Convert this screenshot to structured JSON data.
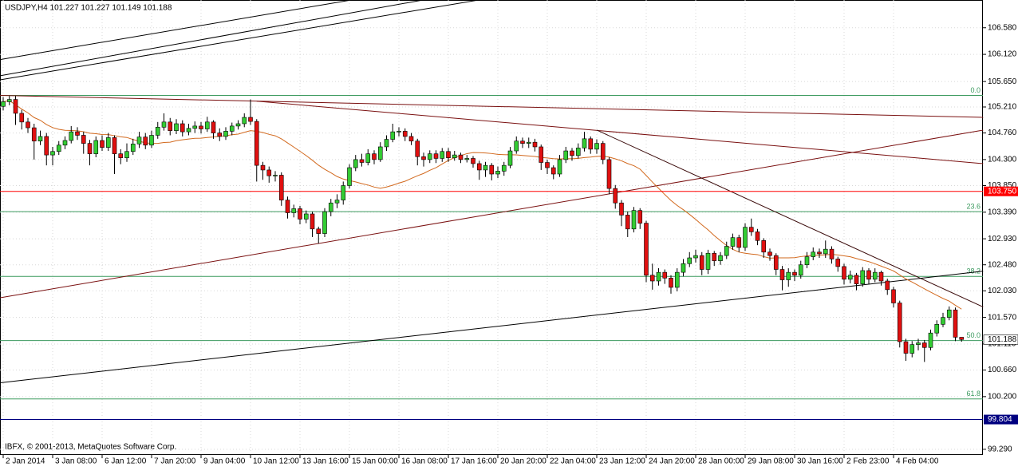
{
  "chart_data": {
    "type": "candlestick",
    "title": "USDJPY,H4  101.227 101.227 101.149 101.188",
    "footer": "IBFX, © 2001-2013, MetaQuotes Software Corp.",
    "categories": [
      "2 Jan 2014",
      null,
      null,
      null,
      null,
      null,
      null,
      null,
      "3 Jan 08:00",
      null,
      null,
      null,
      null,
      null,
      null,
      null,
      "6 Jan 12:00",
      null,
      null,
      null,
      null,
      null,
      null,
      null,
      "7 Jan 20:00",
      null,
      null,
      null,
      null,
      null,
      null,
      null,
      "9 Jan 04:00",
      null,
      null,
      null,
      null,
      null,
      null,
      null,
      "10 Jan 12:00",
      null,
      null,
      null,
      null,
      null,
      null,
      null,
      "13 Jan 16:00",
      null,
      null,
      null,
      null,
      null,
      null,
      null,
      "15 Jan 00:00",
      null,
      null,
      null,
      null,
      null,
      null,
      null,
      "16 Jan 08:00",
      null,
      null,
      null,
      null,
      null,
      null,
      null,
      "17 Jan 16:00",
      null,
      null,
      null,
      null,
      null,
      null,
      null,
      "20 Jan 20:00",
      null,
      null,
      null,
      null,
      null,
      null,
      null,
      "22 Jan 04:00",
      null,
      null,
      null,
      null,
      null,
      null,
      null,
      "23 Jan 12:00",
      null,
      null,
      null,
      null,
      null,
      null,
      null,
      "24 Jan 20:00",
      null,
      null,
      null,
      null,
      null,
      null,
      null,
      "28 Jan 00:00",
      null,
      null,
      null,
      null,
      null,
      null,
      null,
      "29 Jan 08:00",
      null,
      null,
      null,
      null,
      null,
      null,
      null,
      "30 Jan 16:00",
      null,
      null,
      null,
      null,
      null,
      null,
      null,
      "2 Feb 23:00",
      null,
      null,
      null,
      null,
      null,
      null,
      null,
      "4 Feb 04:00",
      null,
      null,
      null,
      null,
      null,
      null,
      null,
      null,
      null,
      null,
      null
    ],
    "series": [
      {
        "up_color": "#33cc33",
        "down_color": "#e01010",
        "wick_color": "#000000",
        "open": [
          105.22,
          105.3,
          105.34,
          105.1,
          104.95,
          104.85,
          104.62,
          104.7,
          104.38,
          104.44,
          104.55,
          104.63,
          104.78,
          104.72,
          104.58,
          104.4,
          104.63,
          104.51,
          104.68,
          104.4,
          104.33,
          104.44,
          104.57,
          104.69,
          104.55,
          104.72,
          104.86,
          104.95,
          104.8,
          104.92,
          104.78,
          104.84,
          104.88,
          104.83,
          104.95,
          104.76,
          104.7,
          104.79,
          104.88,
          104.92,
          105.03,
          104.96,
          104.2,
          104.12,
          104.02,
          104.03,
          103.6,
          103.38,
          103.45,
          103.27,
          103.36,
          103.1,
          103.02,
          103.4,
          103.55,
          103.6,
          103.85,
          104.16,
          104.3,
          104.25,
          104.4,
          104.3,
          104.52,
          104.65,
          104.78,
          104.79,
          104.7,
          104.62,
          104.35,
          104.3,
          104.4,
          104.32,
          104.44,
          104.33,
          104.38,
          104.3,
          104.32,
          104.23,
          104.12,
          104.2,
          104.05,
          104.1,
          104.2,
          104.45,
          104.62,
          104.58,
          104.6,
          104.52,
          104.25,
          104.16,
          104.05,
          104.3,
          104.45,
          104.37,
          104.5,
          104.66,
          104.48,
          104.58,
          104.3,
          103.8,
          103.55,
          103.34,
          103.1,
          103.42,
          103.2,
          102.3,
          102.2,
          102.35,
          102.25,
          102.09,
          102.35,
          102.5,
          102.6,
          102.64,
          102.4,
          102.68,
          102.55,
          102.64,
          102.8,
          102.95,
          102.78,
          103.13,
          103.05,
          102.9,
          102.7,
          102.64,
          102.4,
          102.22,
          102.35,
          102.3,
          102.48,
          102.62,
          102.7,
          102.67,
          102.75,
          102.58,
          102.45,
          102.23,
          102.3,
          102.15,
          102.38,
          102.23,
          102.35,
          102.2,
          102.05,
          101.82,
          101.15,
          100.95,
          101.1,
          101.13,
          101.05,
          101.3,
          101.45,
          101.57,
          101.7,
          101.227
        ],
        "high": [
          105.38,
          105.4,
          105.4,
          105.16,
          105.02,
          104.92,
          104.8,
          104.76,
          104.52,
          104.62,
          104.7,
          104.88,
          104.86,
          104.78,
          104.64,
          104.7,
          104.72,
          104.76,
          104.72,
          104.48,
          104.58,
          104.66,
          104.78,
          104.76,
          104.8,
          104.95,
          105.1,
          105.02,
          105.0,
          104.98,
          104.92,
          104.96,
          104.95,
          105.04,
          104.98,
          104.84,
          104.86,
          104.94,
          104.98,
          105.1,
          105.34,
          105.0,
          104.26,
          104.18,
          104.1,
          104.08,
          103.66,
          103.52,
          103.5,
          103.42,
          103.4,
          103.14,
          103.46,
          103.62,
          103.7,
          103.92,
          104.22,
          104.38,
          104.4,
          104.48,
          104.46,
          104.6,
          104.72,
          104.92,
          104.86,
          104.84,
          104.76,
          104.66,
          104.42,
          104.46,
          104.46,
          104.5,
          104.5,
          104.45,
          104.42,
          104.38,
          104.36,
          104.28,
          104.26,
          104.24,
          104.18,
          104.26,
          104.52,
          104.7,
          104.68,
          104.68,
          104.66,
          104.56,
          104.3,
          104.2,
          104.38,
          104.52,
          104.5,
          104.58,
          104.78,
          104.7,
          104.65,
          104.62,
          104.34,
          103.86,
          103.6,
          103.4,
          103.48,
          103.46,
          103.24,
          102.5,
          102.42,
          102.4,
          102.3,
          102.42,
          102.58,
          102.7,
          102.74,
          102.7,
          102.74,
          102.72,
          102.7,
          102.88,
          103.02,
          103.0,
          103.2,
          103.28,
          103.1,
          102.94,
          102.76,
          102.68,
          102.46,
          102.42,
          102.4,
          102.55,
          102.7,
          102.78,
          102.76,
          102.9,
          102.8,
          102.62,
          102.5,
          102.38,
          102.34,
          102.44,
          102.42,
          102.42,
          102.38,
          102.24,
          102.1,
          101.86,
          101.2,
          101.16,
          101.2,
          101.18,
          101.36,
          101.52,
          101.65,
          101.76,
          101.74,
          101.227
        ],
        "low": [
          105.15,
          105.24,
          104.9,
          104.82,
          104.76,
          104.3,
          104.55,
          104.2,
          104.2,
          104.38,
          104.48,
          104.58,
          104.64,
          104.4,
          104.2,
          104.34,
          104.45,
          104.45,
          104.05,
          104.22,
          104.26,
          104.38,
          104.5,
          104.48,
          104.5,
          104.66,
          104.8,
          104.72,
          104.74,
          104.7,
          104.72,
          104.76,
          104.75,
          104.78,
          104.66,
          104.62,
          104.64,
          104.72,
          104.82,
          104.86,
          104.9,
          103.92,
          103.95,
          103.9,
          103.92,
          103.5,
          103.28,
          103.3,
          103.18,
          103.2,
          102.96,
          102.85,
          102.96,
          103.32,
          103.46,
          103.52,
          103.8,
          104.1,
          104.18,
          104.2,
          104.22,
          104.26,
          104.45,
          104.6,
          104.7,
          104.62,
          104.55,
          104.2,
          104.18,
          104.24,
          104.24,
          104.26,
          104.26,
          104.28,
          104.24,
          104.25,
          104.16,
          103.95,
          104.0,
          103.94,
          103.98,
          104.02,
          104.15,
          104.4,
          104.5,
          104.5,
          104.44,
          104.12,
          104.05,
          103.96,
          104.0,
          104.24,
          104.28,
          104.32,
          104.44,
          104.4,
          104.4,
          104.22,
          103.7,
          103.45,
          103.15,
          102.96,
          103.04,
          103.1,
          102.18,
          102.05,
          102.12,
          102.15,
          101.98,
          102.02,
          102.28,
          102.44,
          102.52,
          102.3,
          102.32,
          102.46,
          102.48,
          102.58,
          102.74,
          102.7,
          102.72,
          102.98,
          102.82,
          102.6,
          102.55,
          102.3,
          102.04,
          102.1,
          102.2,
          102.24,
          102.42,
          102.56,
          102.6,
          102.6,
          102.5,
          102.36,
          102.14,
          102.16,
          102.04,
          102.1,
          102.15,
          102.18,
          102.12,
          101.96,
          101.74,
          101.05,
          100.82,
          100.88,
          101.0,
          100.8,
          101.0,
          101.24,
          101.4,
          101.52,
          101.16,
          101.149
        ],
        "close": [
          105.3,
          105.34,
          105.1,
          104.95,
          104.85,
          104.62,
          104.7,
          104.38,
          104.44,
          104.55,
          104.63,
          104.78,
          104.72,
          104.58,
          104.4,
          104.63,
          104.51,
          104.68,
          104.4,
          104.33,
          104.44,
          104.57,
          104.69,
          104.55,
          104.72,
          104.86,
          104.95,
          104.8,
          104.92,
          104.78,
          104.84,
          104.88,
          104.83,
          104.95,
          104.76,
          104.7,
          104.79,
          104.88,
          104.92,
          105.03,
          104.96,
          104.2,
          104.12,
          104.02,
          104.03,
          103.6,
          103.38,
          103.45,
          103.27,
          103.36,
          103.1,
          103.02,
          103.4,
          103.55,
          103.6,
          103.85,
          104.16,
          104.3,
          104.25,
          104.4,
          104.3,
          104.52,
          104.65,
          104.78,
          104.79,
          104.7,
          104.62,
          104.35,
          104.3,
          104.4,
          104.32,
          104.44,
          104.33,
          104.38,
          104.3,
          104.32,
          104.23,
          104.12,
          104.2,
          104.05,
          104.1,
          104.2,
          104.45,
          104.62,
          104.58,
          104.6,
          104.52,
          104.25,
          104.16,
          104.05,
          104.3,
          104.45,
          104.37,
          104.5,
          104.66,
          104.48,
          104.58,
          104.3,
          103.8,
          103.55,
          103.34,
          103.1,
          103.42,
          103.2,
          102.3,
          102.2,
          102.35,
          102.25,
          102.09,
          102.35,
          102.5,
          102.6,
          102.64,
          102.4,
          102.68,
          102.55,
          102.64,
          102.8,
          102.95,
          102.78,
          103.13,
          103.05,
          102.9,
          102.7,
          102.64,
          102.4,
          102.22,
          102.35,
          102.3,
          102.48,
          102.62,
          102.7,
          102.67,
          102.75,
          102.58,
          102.45,
          102.23,
          102.3,
          102.15,
          102.38,
          102.23,
          102.35,
          102.2,
          102.05,
          101.82,
          101.15,
          100.95,
          101.1,
          101.13,
          101.05,
          101.3,
          101.45,
          101.57,
          101.7,
          101.227,
          101.188
        ]
      }
    ],
    "moving_average": {
      "period": 21,
      "color": "#d2691e"
    },
    "ylim": [
      99.19,
      107.06
    ],
    "yticks": [
      {
        "value": 106.58,
        "label": "106.580"
      },
      {
        "value": 106.12,
        "label": "106.120"
      },
      {
        "value": 105.65,
        "label": "105.650"
      },
      {
        "value": 105.21,
        "label": "105.210"
      },
      {
        "value": 104.76,
        "label": "104.760"
      },
      {
        "value": 104.3,
        "label": "104.300"
      },
      {
        "value": 103.85,
        "label": "103.850"
      },
      {
        "value": 103.39,
        "label": "103.390"
      },
      {
        "value": 102.93,
        "label": "102.930"
      },
      {
        "value": 102.48,
        "label": "102.480"
      },
      {
        "value": 102.03,
        "label": "102.030"
      },
      {
        "value": 101.57,
        "label": "101.570"
      },
      {
        "value": 101.11,
        "label": "101.110"
      },
      {
        "value": 100.66,
        "label": "100.660"
      },
      {
        "value": 100.2,
        "label": "100.200"
      },
      {
        "value": 99.29,
        "label": "99.290"
      }
    ],
    "grid": true,
    "levels": [
      {
        "value": 103.75,
        "label": "103.750",
        "color": "#ff0000",
        "text_color": "#ffffff"
      },
      {
        "value": 99.804,
        "label": "99.804",
        "color": "#000080",
        "text_color": "#ffffff"
      }
    ],
    "current_price": {
      "value": 101.188,
      "label": "101.188"
    },
    "fibonacci": {
      "color": "#3c9a5f",
      "levels": [
        {
          "value": 105.41,
          "label": "0.0"
        },
        {
          "value": 103.4,
          "label": "23.6"
        },
        {
          "value": 102.28,
          "label": "38.2"
        },
        {
          "value": 101.17,
          "label": "50.0"
        },
        {
          "value": 100.16,
          "label": "61.8"
        }
      ]
    },
    "trendlines": [
      {
        "color": "#000000",
        "start": [
          -0.5,
          106.03
        ],
        "end": [
          56.3,
          107.06
        ]
      },
      {
        "color": "#000000",
        "start": [
          -0.5,
          105.75
        ],
        "end": [
          67.9,
          107.06
        ]
      },
      {
        "color": "#000000",
        "start": [
          -0.5,
          105.68
        ],
        "end": [
          76.9,
          107.06
        ]
      },
      {
        "color": "#7a1010",
        "start": [
          -0.5,
          105.41
        ],
        "end": [
          158.5,
          105.03
        ]
      },
      {
        "color": "#7a1010",
        "start": [
          41,
          105.31
        ],
        "end": [
          158.5,
          104.23
        ]
      },
      {
        "color": "#7a1010",
        "start": [
          -0.5,
          101.91
        ],
        "end": [
          158.5,
          104.81
        ]
      },
      {
        "color": "#3a0a0a",
        "start": [
          96,
          104.81
        ],
        "end": [
          158.5,
          101.75
        ]
      },
      {
        "color": "#000000",
        "start": [
          -0.5,
          100.44
        ],
        "end": [
          158.5,
          102.37
        ]
      }
    ]
  }
}
